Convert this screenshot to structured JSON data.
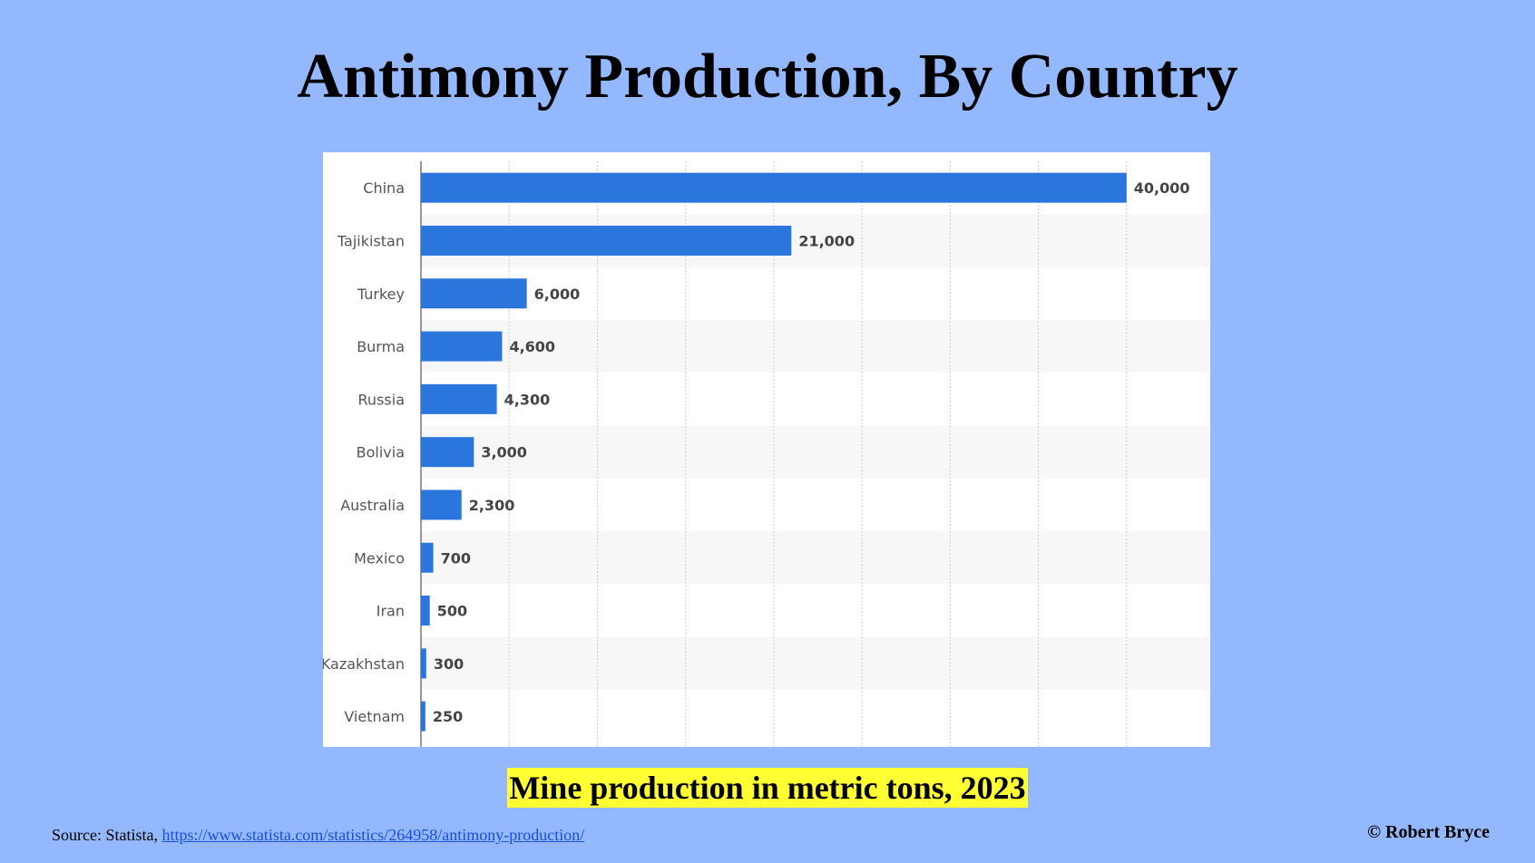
{
  "title": "Antimony Production, By Country",
  "subtitle": "Mine production in metric tons, 2023",
  "source": {
    "prefix": "Source: Statista, ",
    "link_text": "https://www.statista.com/statistics/264958/antimony-production/"
  },
  "copyright": "© Robert Bryce",
  "colors": {
    "background": "#94b8fe",
    "bar": "#2a76dd",
    "highlight": "#ffff33"
  },
  "chart_data": {
    "type": "bar",
    "orientation": "horizontal",
    "title": "Antimony Production, By Country",
    "xlabel": "",
    "ylabel": "",
    "categories": [
      "China",
      "Tajikistan",
      "Turkey",
      "Burma",
      "Russia",
      "Bolivia",
      "Australia",
      "Mexico",
      "Iran",
      "Kazakhstan",
      "Vietnam"
    ],
    "values": [
      40000,
      21000,
      6000,
      4600,
      4300,
      3000,
      2300,
      700,
      500,
      300,
      250
    ],
    "value_labels": [
      "40,000",
      "21,000",
      "6,000",
      "4,600",
      "4,300",
      "3,000",
      "2,300",
      "700",
      "500",
      "300",
      "250"
    ],
    "xlim": [
      0,
      45000
    ],
    "grid": true,
    "legend": "none"
  }
}
